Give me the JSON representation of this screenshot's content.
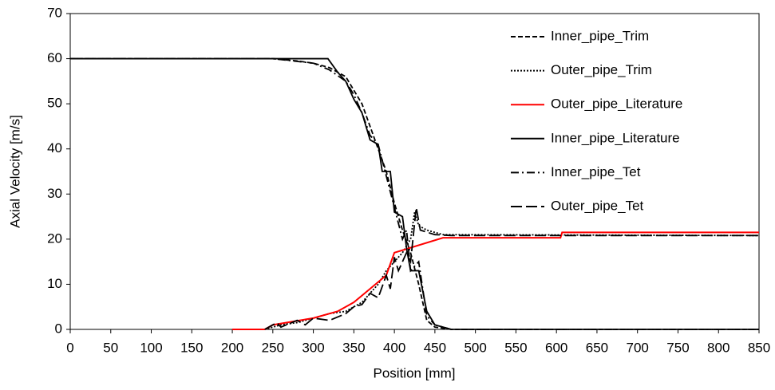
{
  "chart_data": {
    "type": "line",
    "x_label": "Position [mm]",
    "y_label": "Axial Velocity [m/s]",
    "xlim": [
      0,
      850
    ],
    "xticks": [
      0,
      50,
      100,
      150,
      200,
      250,
      300,
      350,
      400,
      450,
      500,
      550,
      600,
      650,
      700,
      750,
      800,
      850
    ],
    "ylim": [
      0,
      70
    ],
    "yticks": [
      0,
      10,
      20,
      30,
      40,
      50,
      60,
      70
    ],
    "legend": "upper-right",
    "series": [
      {
        "name": "Inner_pipe_Trim",
        "color": "#000000",
        "dash": "6,3",
        "x": [
          0,
          250,
          280,
          300,
          320,
          340,
          350,
          360,
          370,
          380,
          390,
          400,
          410,
          420,
          430,
          440,
          450,
          470,
          850
        ],
        "values": [
          60,
          60,
          59.5,
          59,
          58,
          56,
          53,
          50,
          45,
          40,
          35,
          28,
          22,
          17,
          10,
          2,
          0.5,
          0,
          0
        ]
      },
      {
        "name": "Outer_pipe_Trim",
        "color": "#000000",
        "dash": "2,2",
        "x": [
          240,
          260,
          280,
          300,
          320,
          340,
          360,
          370,
          380,
          390,
          400,
          410,
          420,
          425,
          430,
          440,
          460,
          850
        ],
        "values": [
          0,
          1,
          1.5,
          2.5,
          3.5,
          4,
          6,
          8,
          10,
          13,
          15,
          17,
          20,
          26,
          23,
          22,
          21,
          20.8
        ]
      },
      {
        "name": "Outer_pipe_Literature",
        "color": "#ff0000",
        "dash": "none",
        "x": [
          200,
          240,
          250,
          300,
          330,
          350,
          370,
          390,
          400,
          460,
          605,
          607,
          850
        ],
        "values": [
          0,
          0,
          1,
          2.5,
          4,
          6,
          9,
          12,
          17,
          20.3,
          20.3,
          21.5,
          21.5
        ]
      },
      {
        "name": "Inner_pipe_Literature",
        "color": "#000000",
        "dash": "none",
        "x": [
          0,
          318,
          330,
          340,
          350,
          360,
          370,
          380,
          385,
          395,
          400,
          410,
          415,
          420,
          430,
          440,
          450,
          460,
          470,
          850
        ],
        "values": [
          60,
          60,
          57,
          55,
          51,
          48,
          42,
          41,
          35,
          35,
          26,
          25,
          18,
          13,
          13,
          4,
          1,
          0.5,
          0,
          0
        ]
      },
      {
        "name": "Inner_pipe_Tet",
        "color": "#000000",
        "dash": "10,4,2,4",
        "x": [
          0,
          250,
          300,
          320,
          340,
          350,
          360,
          370,
          380,
          390,
          400,
          410,
          415,
          420,
          430,
          440,
          450,
          470,
          850
        ],
        "values": [
          60,
          60,
          59,
          57.5,
          55,
          52,
          48,
          43,
          41,
          34,
          27,
          20,
          22,
          13,
          15,
          3,
          1,
          0,
          0
        ]
      },
      {
        "name": "Outer_pipe_Tet",
        "color": "#000000",
        "dash": "14,5",
        "x": [
          240,
          255,
          260,
          280,
          290,
          300,
          320,
          340,
          350,
          360,
          370,
          380,
          390,
          395,
          400,
          405,
          410,
          415,
          420,
          427,
          432,
          450,
          470,
          850
        ],
        "values": [
          0,
          1.5,
          0.5,
          2,
          1,
          2.5,
          2,
          3.5,
          5,
          5.5,
          8,
          7,
          12,
          9,
          16,
          13,
          15,
          17,
          15,
          27,
          22,
          21,
          20.8,
          20.8
        ]
      }
    ]
  }
}
